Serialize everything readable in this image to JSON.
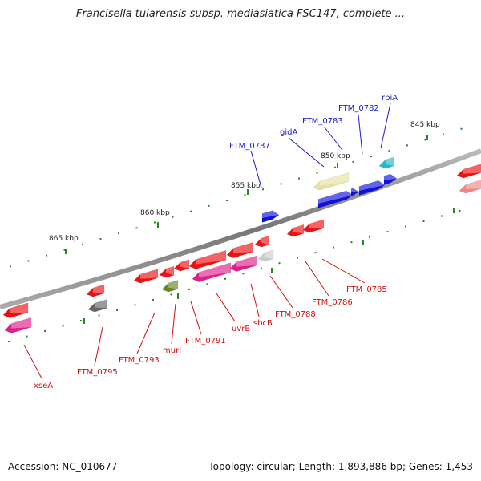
{
  "header": {
    "title": "Francisella tularensis subsp. mediasiatica FSC147, complete ..."
  },
  "footer": {
    "accession": "Accession: NC_010677",
    "summary": "Topology: circular; Length: 1,893,886 bp; Genes: 1,453"
  },
  "scale": {
    "ticks": [
      {
        "label": "845 kbp"
      },
      {
        "label": "850 kbp"
      },
      {
        "label": "855 kbp"
      },
      {
        "label": "860 kbp"
      },
      {
        "label": "865 kbp"
      }
    ]
  },
  "colors": {
    "forward_label": "#1a1acc",
    "reverse_label": "#cc1111",
    "red": "#ee1111",
    "blue": "#1010dd",
    "yellow": "#e8e0a0",
    "cyan": "#22bbcc",
    "magenta": "#e0208a",
    "olive": "#668822",
    "gray": "#666666",
    "lightgray": "#cccccc",
    "pink": "#ee8888",
    "backbone": "#888888",
    "tick": "#228822"
  },
  "labels": {
    "forward": [
      "FTM_0787",
      "gidA",
      "FTM_0783",
      "FTM_0782",
      "rpiA"
    ],
    "reverse": [
      "xseA",
      "FTM_0795",
      "FTM_0793",
      "murI",
      "FTM_0791",
      "uvrB",
      "sbcB",
      "FTM_0788",
      "FTM_0786",
      "FTM_0785"
    ]
  }
}
